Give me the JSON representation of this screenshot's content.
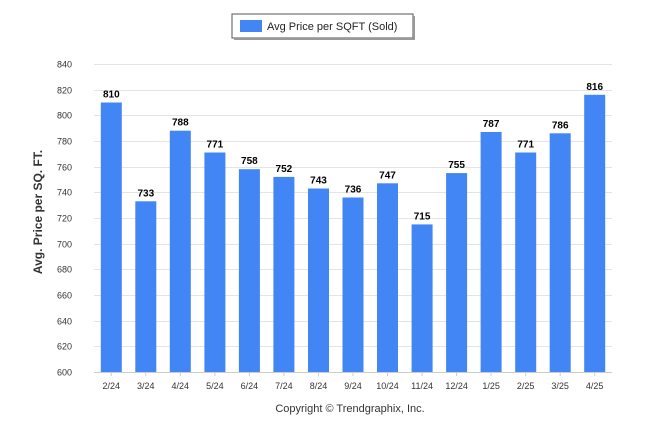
{
  "chart_data": {
    "type": "bar",
    "title": "",
    "xlabel": "",
    "ylabel": "Avg. Price per SQ. FT.",
    "ylim": [
      600,
      840
    ],
    "yticks": [
      600,
      620,
      640,
      660,
      680,
      700,
      720,
      740,
      760,
      780,
      800,
      820,
      840
    ],
    "grid": true,
    "legend_position": "top-center",
    "categories": [
      "2/24",
      "3/24",
      "4/24",
      "5/24",
      "6/24",
      "7/24",
      "8/24",
      "9/24",
      "10/24",
      "11/24",
      "12/24",
      "1/25",
      "2/25",
      "3/25",
      "4/25"
    ],
    "series": [
      {
        "name": "Avg Price per SQFT (Sold)",
        "color": "#4285F4",
        "values": [
          810,
          733,
          788,
          771,
          758,
          752,
          743,
          736,
          747,
          715,
          755,
          787,
          771,
          786,
          816
        ]
      }
    ]
  },
  "footer": {
    "copyright": "Copyright © Trendgraphix, Inc."
  }
}
